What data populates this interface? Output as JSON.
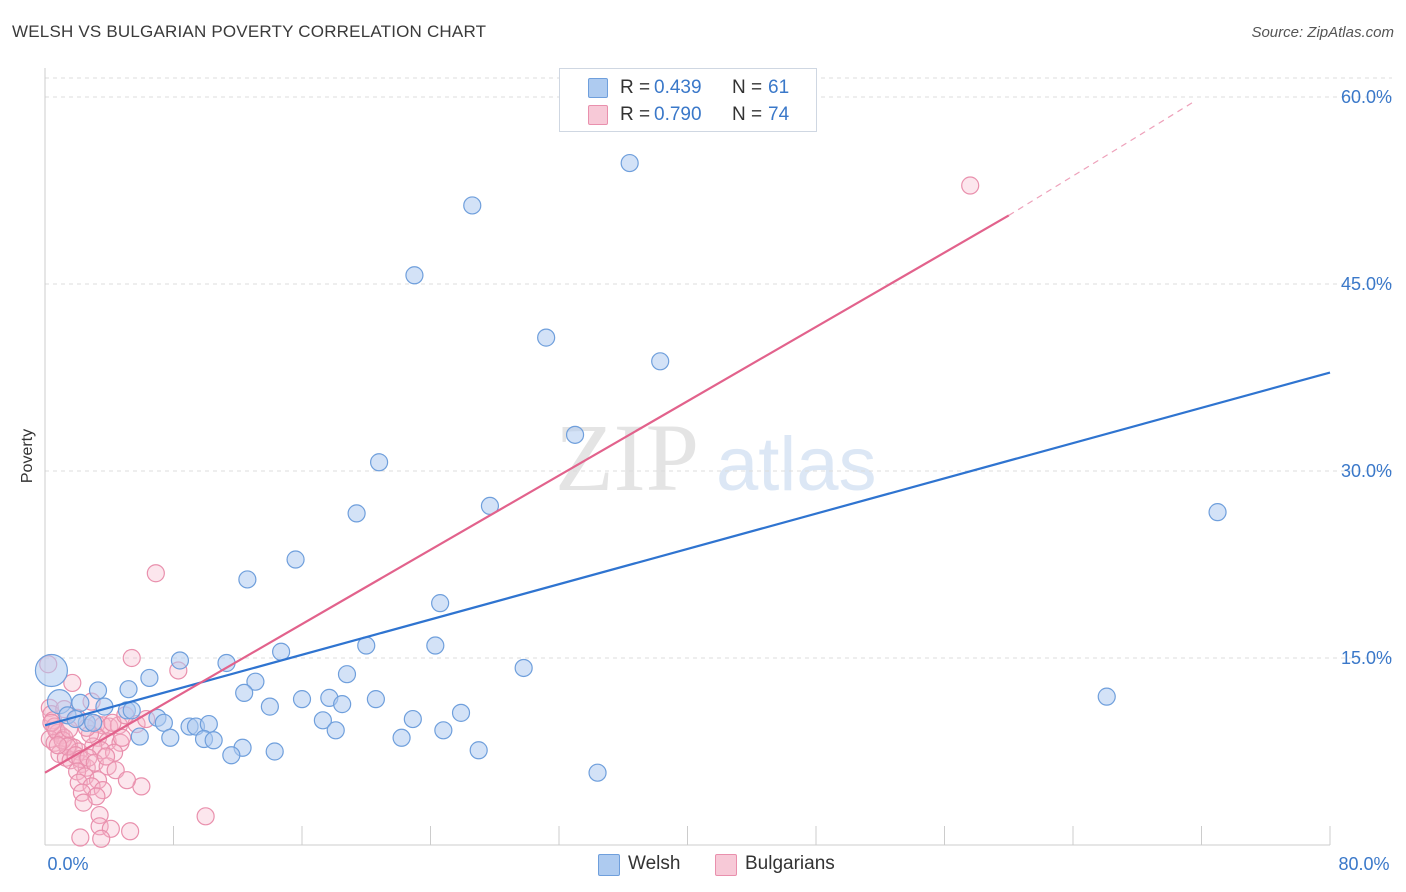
{
  "header": {
    "title": "WELSH VS BULGARIAN POVERTY CORRELATION CHART",
    "source": "Source: ZipAtlas.com"
  },
  "watermark": {
    "part1": "ZIP",
    "part2": "atlas"
  },
  "legend_top": {
    "rows": [
      {
        "r_label": "R =",
        "r_value": "0.439",
        "n_label": "N =",
        "n_value": "61"
      },
      {
        "r_label": "R =",
        "r_value": "0.790",
        "n_label": "N =",
        "n_value": "74"
      }
    ]
  },
  "legend_bottom": {
    "items": [
      "Welsh",
      "Bulgarians"
    ]
  },
  "colors": {
    "welsh_fill": "#aecbf0",
    "welsh_stroke": "#6f9fdc",
    "welsh_line": "#2f74d0",
    "bulg_fill": "#f7b8cb",
    "bulg_stroke": "#e990ad",
    "bulg_line": "#e2628c",
    "tick_text": "#3a78c9",
    "grid": "#dcdcdc"
  },
  "chart_data": {
    "type": "scatter",
    "title": "WELSH VS BULGARIAN POVERTY CORRELATION CHART",
    "xlabel": "",
    "ylabel": "Poverty",
    "xlim": [
      0,
      80
    ],
    "ylim": [
      0,
      62
    ],
    "x_tick_labels": [
      "0.0%",
      "80.0%"
    ],
    "y_ticks": [
      15,
      30,
      45,
      60
    ],
    "y_tick_labels": [
      "15.0%",
      "30.0%",
      "45.0%",
      "60.0%"
    ],
    "grid": true,
    "series": [
      {
        "name": "Welsh",
        "r": 0.439,
        "n": 61,
        "trend": {
          "x": [
            0,
            80
          ],
          "y": [
            9.6,
            37.9
          ],
          "dashed_from": null
        },
        "points": [
          [
            0.4,
            14.0,
            "big"
          ],
          [
            0.9,
            11.5,
            "mid"
          ],
          [
            36.4,
            54.7
          ],
          [
            26.6,
            51.3
          ],
          [
            23.0,
            45.7
          ],
          [
            31.2,
            40.7
          ],
          [
            38.3,
            38.8
          ],
          [
            33.0,
            32.9
          ],
          [
            20.8,
            30.7
          ],
          [
            27.7,
            27.2
          ],
          [
            19.4,
            26.6
          ],
          [
            73.0,
            26.7
          ],
          [
            15.6,
            22.9
          ],
          [
            12.6,
            21.3
          ],
          [
            24.6,
            19.4
          ],
          [
            14.7,
            15.5
          ],
          [
            20.0,
            16.0
          ],
          [
            24.3,
            16.0
          ],
          [
            8.4,
            14.8
          ],
          [
            11.3,
            14.6
          ],
          [
            18.8,
            13.7
          ],
          [
            29.8,
            14.2
          ],
          [
            6.5,
            13.4
          ],
          [
            13.1,
            13.1
          ],
          [
            3.3,
            12.4
          ],
          [
            5.2,
            12.5
          ],
          [
            12.4,
            12.2
          ],
          [
            17.7,
            11.8
          ],
          [
            16.0,
            11.7
          ],
          [
            20.6,
            11.7
          ],
          [
            66.1,
            11.9
          ],
          [
            2.2,
            11.4
          ],
          [
            3.7,
            11.1
          ],
          [
            18.5,
            11.3
          ],
          [
            14.0,
            11.1
          ],
          [
            5.1,
            10.8
          ],
          [
            5.4,
            10.8
          ],
          [
            1.4,
            10.4
          ],
          [
            7.0,
            10.2
          ],
          [
            17.3,
            10.0
          ],
          [
            7.4,
            9.8
          ],
          [
            22.9,
            10.1
          ],
          [
            9.0,
            9.5
          ],
          [
            9.4,
            9.5
          ],
          [
            10.2,
            9.7
          ],
          [
            2.6,
            9.8
          ],
          [
            3.0,
            9.8
          ],
          [
            24.8,
            9.2
          ],
          [
            18.1,
            9.2
          ],
          [
            25.9,
            10.6
          ],
          [
            5.9,
            8.7
          ],
          [
            7.8,
            8.6
          ],
          [
            9.9,
            8.5
          ],
          [
            10.5,
            8.4
          ],
          [
            22.2,
            8.6
          ],
          [
            12.3,
            7.8
          ],
          [
            14.3,
            7.5
          ],
          [
            11.6,
            7.2
          ],
          [
            27.0,
            7.6
          ],
          [
            34.4,
            5.8
          ],
          [
            1.9,
            10.1
          ]
        ]
      },
      {
        "name": "Bulgarians",
        "r": 0.79,
        "n": 74,
        "trend": {
          "x": [
            0,
            60
          ],
          "y": [
            5.8,
            50.5
          ],
          "dashed_to": [
            71.5,
            59.6
          ]
        },
        "points": [
          [
            57.6,
            52.9
          ],
          [
            6.9,
            21.8
          ],
          [
            5.4,
            15.0
          ],
          [
            8.3,
            14.0
          ],
          [
            1.7,
            13.0
          ],
          [
            0.2,
            14.5
          ],
          [
            2.9,
            11.5
          ],
          [
            0.3,
            11.0
          ],
          [
            0.4,
            10.5
          ],
          [
            0.5,
            10.0
          ],
          [
            0.6,
            9.5
          ],
          [
            0.8,
            9.0
          ],
          [
            1.0,
            8.8
          ],
          [
            1.2,
            8.6
          ],
          [
            0.3,
            8.5
          ],
          [
            0.6,
            8.2
          ],
          [
            1.5,
            8.0
          ],
          [
            1.8,
            7.8
          ],
          [
            2.1,
            7.5
          ],
          [
            0.9,
            7.3
          ],
          [
            1.3,
            7.0
          ],
          [
            1.6,
            6.8
          ],
          [
            2.3,
            6.5
          ],
          [
            2.6,
            6.2
          ],
          [
            0.4,
            9.8
          ],
          [
            0.7,
            9.2
          ],
          [
            1.1,
            8.4
          ],
          [
            1.4,
            7.9
          ],
          [
            1.9,
            7.2
          ],
          [
            2.2,
            6.9
          ],
          [
            3.2,
            9.7
          ],
          [
            3.6,
            9.6
          ],
          [
            4.0,
            9.5
          ],
          [
            4.6,
            9.6
          ],
          [
            3.3,
            8.6
          ],
          [
            3.9,
            8.3
          ],
          [
            4.7,
            8.2
          ],
          [
            3.0,
            7.9
          ],
          [
            3.5,
            7.6
          ],
          [
            4.3,
            7.4
          ],
          [
            2.7,
            7.0
          ],
          [
            3.1,
            6.6
          ],
          [
            3.9,
            6.3
          ],
          [
            2.0,
            5.9
          ],
          [
            2.5,
            5.5
          ],
          [
            3.3,
            5.2
          ],
          [
            2.1,
            5.0
          ],
          [
            2.9,
            4.7
          ],
          [
            3.6,
            4.4
          ],
          [
            2.3,
            4.2
          ],
          [
            3.2,
            3.9
          ],
          [
            2.4,
            3.4
          ],
          [
            3.4,
            2.4
          ],
          [
            3.4,
            1.5
          ],
          [
            4.1,
            1.3
          ],
          [
            5.3,
            1.1
          ],
          [
            10.0,
            2.3
          ],
          [
            6.0,
            4.7
          ],
          [
            2.2,
            0.6
          ],
          [
            3.5,
            0.5
          ],
          [
            4.2,
            9.8
          ],
          [
            4.8,
            8.6
          ],
          [
            5.7,
            9.7
          ],
          [
            5.0,
            10.4
          ],
          [
            6.3,
            10.1
          ],
          [
            1.2,
            10.9
          ],
          [
            2.0,
            10.2
          ],
          [
            1.5,
            9.3
          ],
          [
            0.8,
            8.0
          ],
          [
            2.8,
            8.9
          ],
          [
            3.8,
            7.1
          ],
          [
            4.4,
            6.0
          ],
          [
            5.1,
            5.2
          ],
          [
            2.6,
            9.4
          ]
        ]
      }
    ]
  }
}
